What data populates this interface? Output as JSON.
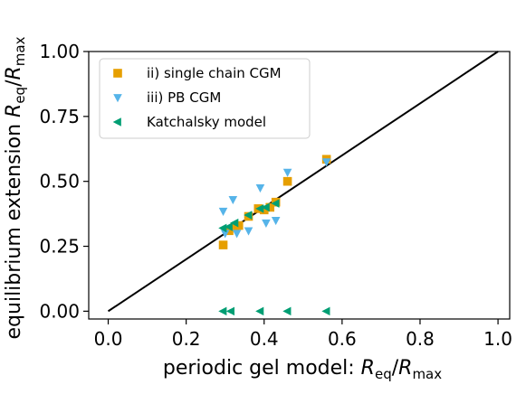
{
  "chart_data": {
    "type": "scatter",
    "xlabel": "periodic gel model: R_eq/R_max",
    "ylabel": "equilibrium extension R_eq/R_max",
    "xlim": [
      -0.05,
      1.03
    ],
    "ylim": [
      -0.03,
      1.0
    ],
    "x_ticks": [
      "0.0",
      "0.2",
      "0.4",
      "0.6",
      "0.8",
      "1.0"
    ],
    "y_ticks": [
      "0.00",
      "0.25",
      "0.50",
      "0.75",
      "1.00"
    ],
    "grid": false,
    "legend_position": "upper-left",
    "reference_line": {
      "x": [
        0,
        1
      ],
      "y": [
        0,
        1
      ],
      "color": "#000000"
    },
    "series": [
      {
        "name": "ii) single chain CGM",
        "marker": "square",
        "color": "#E69F00",
        "x": [
          0.295,
          0.31,
          0.325,
          0.335,
          0.36,
          0.385,
          0.4,
          0.415,
          0.43,
          0.46,
          0.56
        ],
        "y": [
          0.255,
          0.31,
          0.325,
          0.33,
          0.365,
          0.395,
          0.39,
          0.4,
          0.42,
          0.5,
          0.585
        ]
      },
      {
        "name": "iii) PB CGM",
        "marker": "triangle-down",
        "color": "#56B4E9",
        "x": [
          0.295,
          0.3,
          0.32,
          0.33,
          0.36,
          0.39,
          0.405,
          0.43,
          0.46,
          0.56
        ],
        "y": [
          0.385,
          0.3,
          0.43,
          0.3,
          0.31,
          0.475,
          0.34,
          0.35,
          0.535,
          0.575
        ]
      },
      {
        "name": "Katchalsky model",
        "marker": "triangle-left",
        "color": "#009E73",
        "x": [
          0.295,
          0.31,
          0.325,
          0.36,
          0.39,
          0.405,
          0.43,
          0.295,
          0.315,
          0.39,
          0.46,
          0.56
        ],
        "y": [
          0.32,
          0.325,
          0.34,
          0.37,
          0.395,
          0.4,
          0.415,
          0.0,
          0.0,
          0.0,
          0.0,
          0.0
        ]
      }
    ]
  }
}
